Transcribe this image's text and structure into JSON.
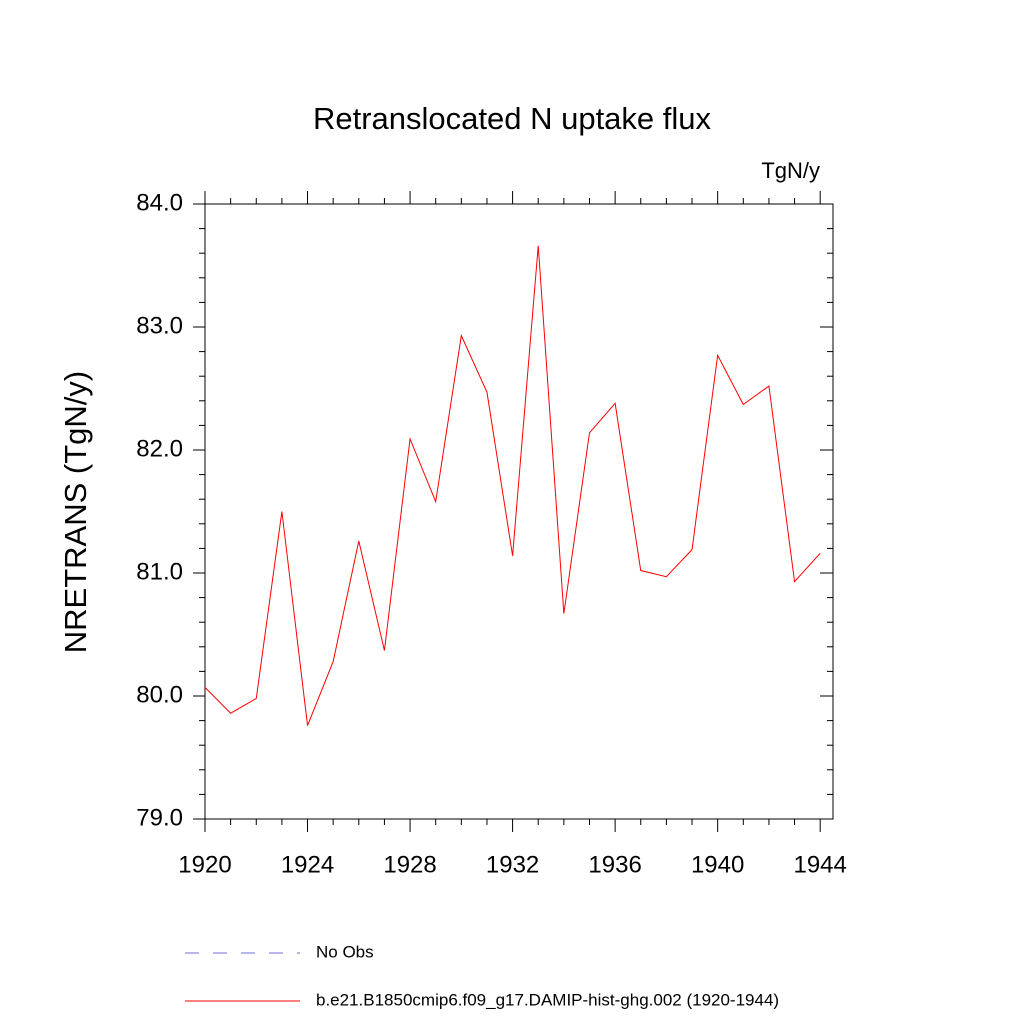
{
  "chart_data": {
    "type": "line",
    "title": "Retranslocated N uptake flux",
    "units": "TgN/y",
    "y_label": "NRETRANS  (TgN/y)",
    "x": [
      1920,
      1921,
      1922,
      1923,
      1924,
      1925,
      1926,
      1927,
      1928,
      1929,
      1930,
      1931,
      1932,
      1933,
      1934,
      1935,
      1936,
      1937,
      1938,
      1939,
      1940,
      1941,
      1942,
      1943,
      1944
    ],
    "series": [
      {
        "name": "b.e21.B1850cmip6.f09_g17.DAMIP-hist-ghg.002 (1920-1944)",
        "color": "#ff0000",
        "values": [
          80.07,
          79.86,
          79.98,
          81.5,
          79.76,
          80.28,
          81.26,
          80.37,
          82.09,
          81.58,
          82.93,
          82.47,
          81.14,
          83.66,
          80.67,
          82.14,
          82.38,
          81.02,
          80.97,
          81.19,
          82.77,
          82.37,
          82.52,
          80.93,
          81.16
        ]
      }
    ],
    "extra_legend": {
      "name": "No Obs",
      "color": "#6f6fd0",
      "dash": "14 14"
    },
    "xlim": [
      1920,
      1944.5
    ],
    "ylim": [
      79,
      84
    ],
    "xticks": [
      1920,
      1924,
      1928,
      1932,
      1936,
      1940,
      1944
    ],
    "yticks": [
      {
        "value": 79,
        "label": "79.0"
      },
      {
        "value": 80,
        "label": "80.0"
      },
      {
        "value": 81,
        "label": "81.0"
      },
      {
        "value": 82,
        "label": "82.0"
      },
      {
        "value": 83,
        "label": "83.0"
      },
      {
        "value": 84,
        "label": "84.0"
      }
    ],
    "xminorticks": [
      1921,
      1922,
      1923,
      1925,
      1926,
      1927,
      1929,
      1930,
      1931,
      1933,
      1934,
      1935,
      1937,
      1938,
      1939,
      1941,
      1942,
      1943
    ],
    "yminorticks": [
      79.2,
      79.4,
      79.6,
      79.8,
      80.2,
      80.4,
      80.6,
      80.8,
      81.2,
      81.4,
      81.6,
      81.8,
      82.2,
      82.4,
      82.6,
      82.8,
      83.2,
      83.4,
      83.6,
      83.8
    ]
  }
}
